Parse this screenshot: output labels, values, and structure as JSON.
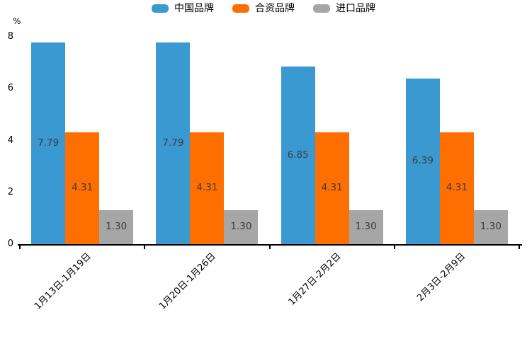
{
  "chart_data": {
    "type": "bar",
    "title": "",
    "xlabel": "",
    "ylabel": "%",
    "ylim": [
      0,
      8
    ],
    "yticks": [
      0,
      2,
      4,
      6,
      8
    ],
    "grid": false,
    "legend_position": "top-center",
    "categories": [
      "1月13日-1月19日",
      "1月20日-1月26日",
      "1月27日-2月2日",
      "2月3日-2月9日"
    ],
    "series": [
      {
        "name": "中国品牌",
        "color": "#3A99D0",
        "values": [
          7.79,
          7.79,
          6.85,
          6.39
        ]
      },
      {
        "name": "合资品牌",
        "color": "#FF6E00",
        "values": [
          4.31,
          4.31,
          4.31,
          4.31
        ]
      },
      {
        "name": "进口品牌",
        "color": "#A6A6A6",
        "values": [
          1.3,
          1.3,
          1.3,
          1.3
        ]
      }
    ],
    "value_label_color": "#3d3d3d",
    "axis_color": "#000000",
    "value_label_decimals": 2
  }
}
